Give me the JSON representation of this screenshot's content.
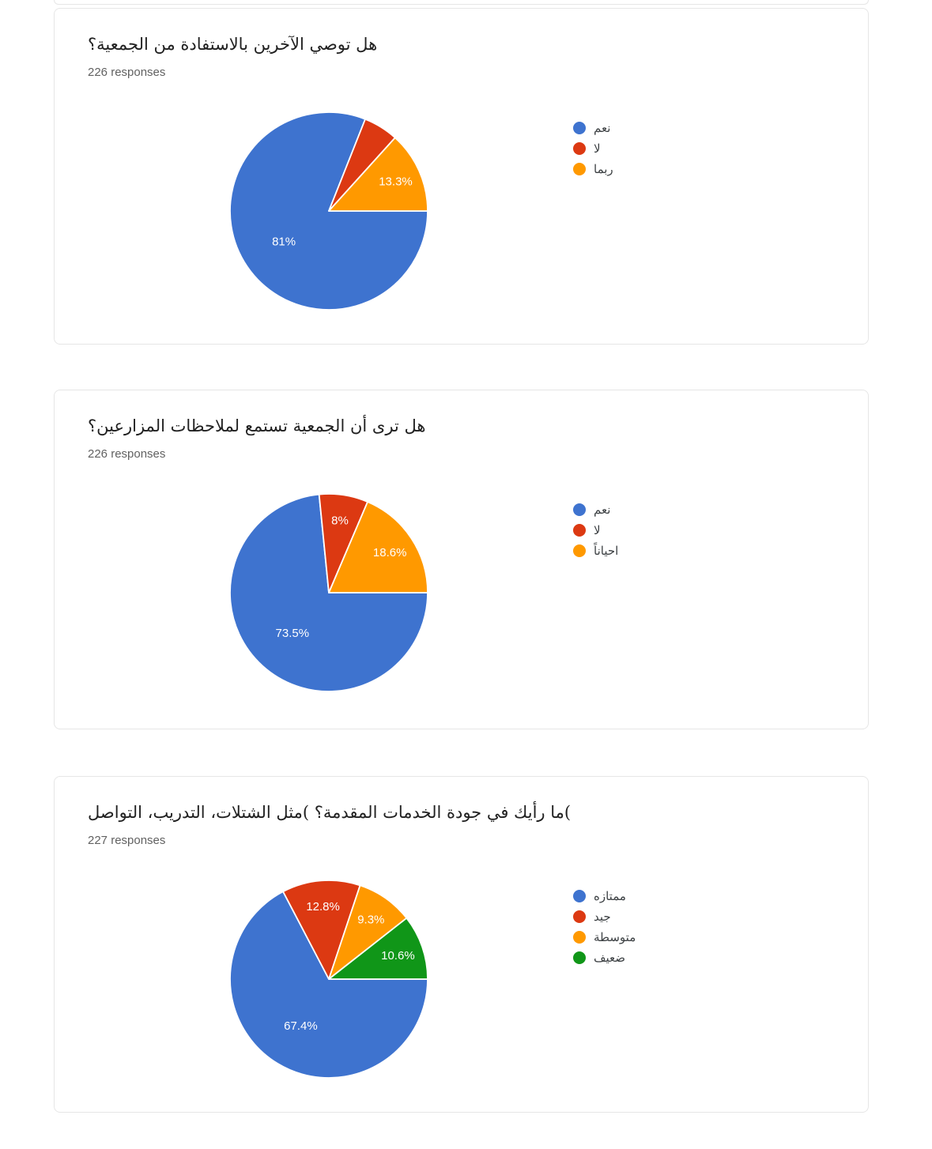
{
  "palette": {
    "blue": "#3E73CF",
    "red": "#DC3912",
    "orange": "#FF9900",
    "green": "#109618",
    "card_border": "#e6e6e6",
    "title_text": "#212121",
    "responses_text": "#616161",
    "legend_text": "#3c4043",
    "slice_label_text": "#ffffff"
  },
  "cards": [
    {
      "title": "هل توصي الآخرين بالاستفادة من الجمعية؟",
      "responses": "226 responses"
    },
    {
      "title": "هل ترى أن الجمعية تستمع لملاحظات المزارعين؟",
      "responses": "226 responses"
    },
    {
      "title": ")ما رأيك في جودة الخدمات المقدمة؟ )مثل الشتلات، التدريب، التواصل",
      "responses": "227 responses"
    }
  ],
  "chart_data": [
    {
      "type": "pie",
      "title": "هل توصي الآخرين بالاستفادة من الجمعية؟",
      "responses_count": 226,
      "legend_position": "right",
      "start_angle": "east-clockwise",
      "slices": [
        {
          "label": "نعم",
          "value_percent": 81,
          "display_label": "81%",
          "color": "blue"
        },
        {
          "label": "لا",
          "value_percent": 5.7,
          "display_label": "",
          "color": "red"
        },
        {
          "label": "ربما",
          "value_percent": 13.3,
          "display_label": "13.3%",
          "color": "orange"
        }
      ]
    },
    {
      "type": "pie",
      "title": "هل ترى أن الجمعية تستمع لملاحظات المزارعين؟",
      "responses_count": 226,
      "legend_position": "right",
      "start_angle": "east-clockwise",
      "slices": [
        {
          "label": "نعم",
          "value_percent": 73.5,
          "display_label": "73.5%",
          "color": "blue"
        },
        {
          "label": "لا",
          "value_percent": 8,
          "display_label": "8%",
          "color": "red"
        },
        {
          "label": "احياناً",
          "value_percent": 18.6,
          "display_label": "18.6%",
          "color": "orange"
        }
      ]
    },
    {
      "type": "pie",
      "title": "ما رأيك في جودة الخدمات المقدمة؟ (مثل الشتلات، التدريب، التواصل",
      "responses_count": 227,
      "legend_position": "right",
      "start_angle": "east-clockwise",
      "slices": [
        {
          "label": "ممتازه",
          "value_percent": 67.4,
          "display_label": "67.4%",
          "color": "blue"
        },
        {
          "label": "جيد",
          "value_percent": 12.8,
          "display_label": "12.8%",
          "color": "red"
        },
        {
          "label": "متوسطة",
          "value_percent": 9.3,
          "display_label": "9.3%",
          "color": "orange"
        },
        {
          "label": "ضعيف",
          "value_percent": 10.6,
          "display_label": "10.6%",
          "color": "green"
        }
      ]
    }
  ]
}
